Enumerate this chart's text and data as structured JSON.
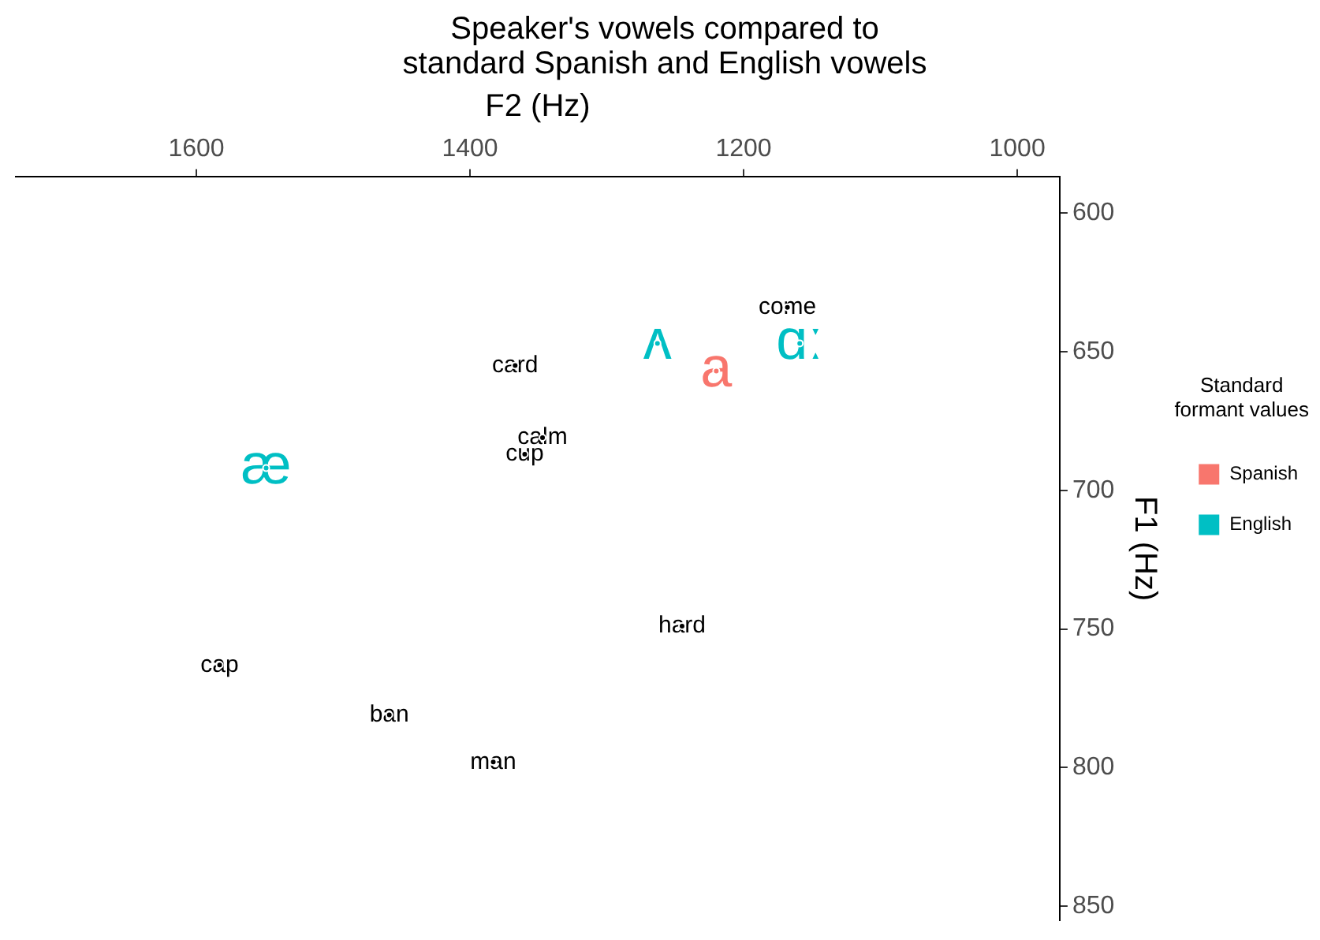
{
  "chart_data": {
    "type": "scatter",
    "title": "Speaker's vowels compared to\nstandard Spanish and English vowels",
    "xlabel": "F2 (Hz)",
    "ylabel": "F1 (Hz)",
    "legend_title": "Standard\nformant values",
    "legend": "right",
    "grid": false,
    "xlim": [
      1732,
      969
    ],
    "xticks": [
      1600,
      1400,
      1200,
      1000
    ],
    "ylim": [
      855,
      587
    ],
    "yticks": [
      600,
      650,
      700,
      750,
      800,
      850
    ],
    "series": [
      {
        "color": "#000000",
        "x": [
          1168,
          1367,
          1347,
          1360,
          1245,
          1583,
          1459,
          1383
        ],
        "values": [
          634,
          655,
          681,
          687,
          749,
          763,
          781,
          798
        ],
        "value_labels": [
          "come",
          "card",
          "calm",
          "cup",
          "hard",
          "cap",
          "ban",
          "man"
        ]
      },
      {
        "name": "Spanish",
        "color": "#f8766d",
        "x": [
          1220
        ],
        "values": [
          657
        ],
        "value_labels": [
          "a"
        ]
      },
      {
        "name": "English",
        "color": "#00bfc4",
        "x": [
          1263,
          1159,
          1549
        ],
        "values": [
          647,
          647,
          692
        ],
        "value_labels": [
          "ʌ",
          "ɑː",
          "æ"
        ]
      }
    ]
  }
}
